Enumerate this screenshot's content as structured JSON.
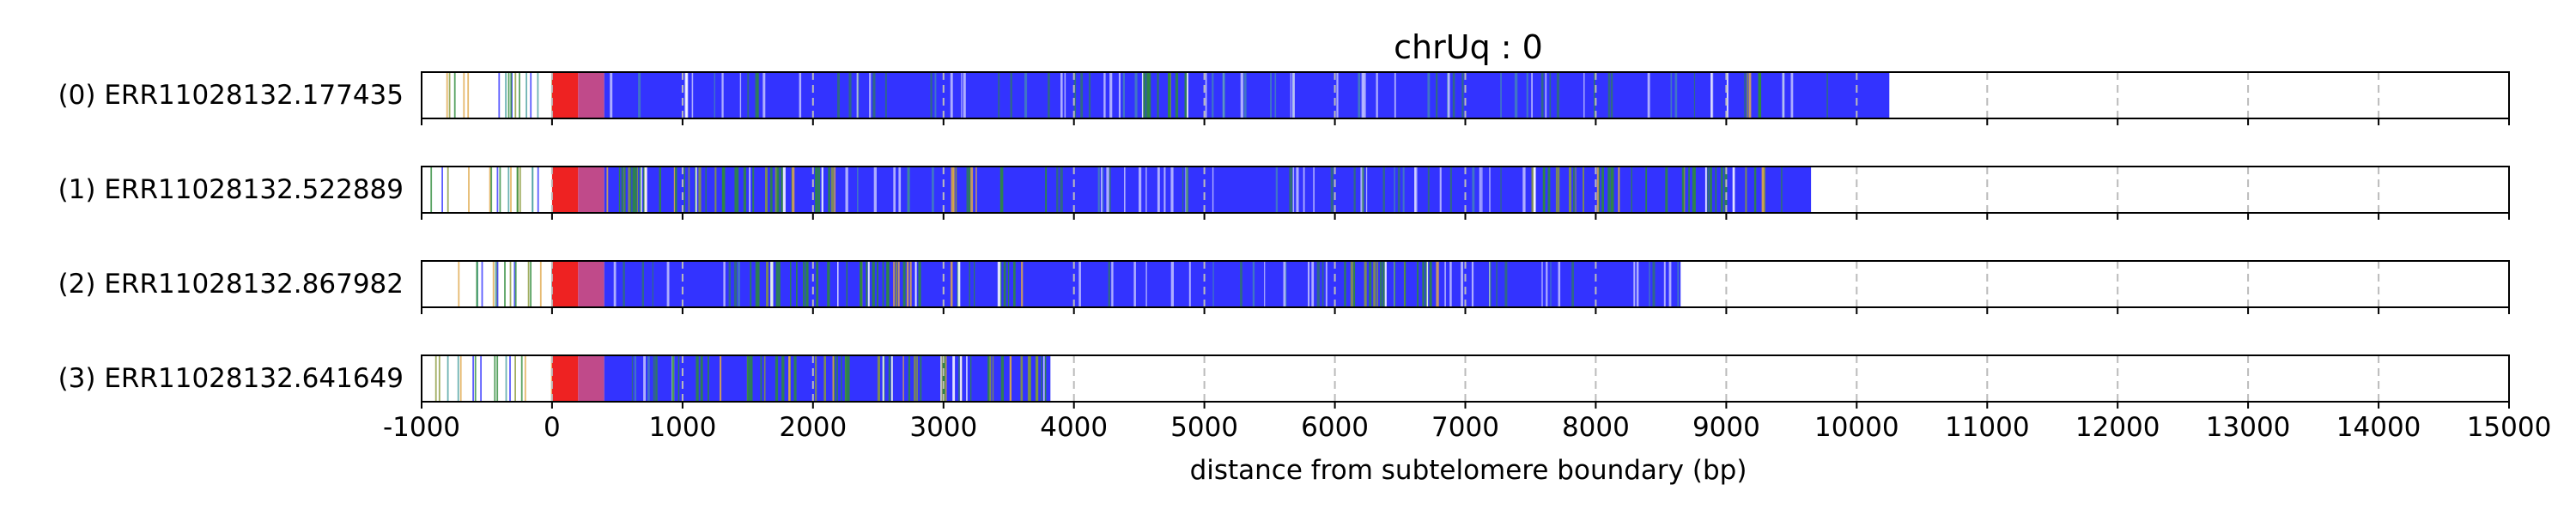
{
  "chart_data": {
    "type": "bar",
    "title": "chrUq : 0",
    "xlabel": "distance from subtelomere boundary (bp)",
    "ylabel": "",
    "xlim": [
      -1000,
      15000
    ],
    "xticks": [
      -1000,
      0,
      1000,
      2000,
      3000,
      4000,
      5000,
      6000,
      7000,
      8000,
      9000,
      10000,
      11000,
      12000,
      13000,
      14000,
      15000
    ],
    "grid": "vertical dashed",
    "colors": {
      "main": "#3333ff",
      "red": "#ee2222",
      "magenta": "#c04a8a",
      "green": "#2e8b3a",
      "olive": "#8a9a3a",
      "orange": "#e0a84a",
      "teal": "#4aa0a0",
      "grid": "#bbbbbb",
      "frame": "#000000"
    },
    "reads": [
      {
        "label": "(0) ERR11028132.177435",
        "end": 10250,
        "dense_regions": [
          [
            4500,
            5000
          ],
          [
            8900,
            9300
          ]
        ]
      },
      {
        "label": "(1) ERR11028132.522889",
        "end": 9650,
        "dense_regions": [
          [
            400,
            2200
          ],
          [
            3000,
            3800
          ],
          [
            7500,
            9300
          ]
        ]
      },
      {
        "label": "(2) ERR11028132.867982",
        "end": 8650,
        "dense_regions": [
          [
            1500,
            3600
          ],
          [
            6000,
            6800
          ]
        ]
      },
      {
        "label": "(3) ERR11028132.641649",
        "end": 3820,
        "dense_regions": [
          [
            900,
            3820
          ]
        ]
      }
    ]
  }
}
